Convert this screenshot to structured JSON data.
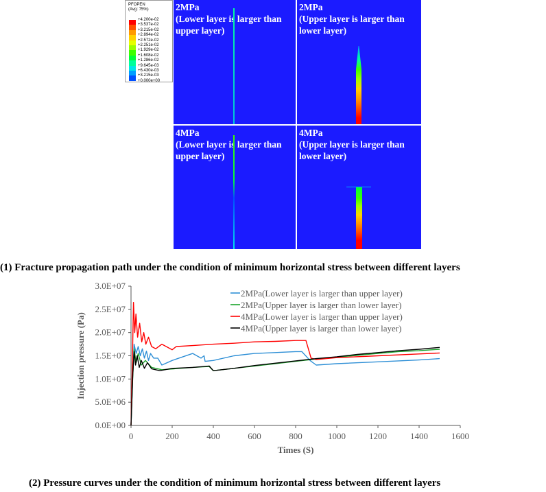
{
  "contour": {
    "legend_title": "PFOPEN\n(Avg: 75%)",
    "legend_values": [
      "+4.200e-02",
      "+3.537e-02",
      "+3.215e-02",
      "+2.894e-02",
      "+2.572e-02",
      "+2.251e-02",
      "+1.929e-02",
      "+1.608e-02",
      "+1.286e-02",
      "+9.645e-03",
      "+6.430e-03",
      "+3.215e-03",
      "+0.000e+00"
    ],
    "legend_colors": [
      "#ff0000",
      "#ff5000",
      "#ff9a00",
      "#ffd200",
      "#e6ff00",
      "#9bff00",
      "#3dff00",
      "#00ff3a",
      "#00ff9b",
      "#00e8e8",
      "#009eff",
      "#0050ff",
      "#0000ff"
    ],
    "panels": [
      {
        "label": "2MPa\n(Lower layer is larger than\nupper layer)"
      },
      {
        "label": "2MPa\n(Upper layer is larger than\nlower layer)"
      },
      {
        "label": "4MPa\n(Lower layer is larger than\nupper layer)"
      },
      {
        "label": "4MPa\n(Upper layer is larger than\nlower layer)"
      }
    ],
    "background_color": "#1b1bff"
  },
  "captions": {
    "top": "(1)    Fracture propagation path under the condition of minimum horizontal stress between different layers",
    "bottom": "(2)    Pressure curves under the condition of minimum horizontal stress between different layers"
  },
  "chart_data": {
    "type": "line",
    "xlabel": "Times (S)",
    "ylabel": "Injection pressure (Pa)",
    "xlim": [
      0,
      1600
    ],
    "ylim": [
      0,
      30000000
    ],
    "xticks": [
      "0",
      "200",
      "400",
      "600",
      "800",
      "1000",
      "1200",
      "1400",
      "1600"
    ],
    "yticks": [
      "0.0E+00",
      "5.0E+06",
      "1.0E+07",
      "1.5E+07",
      "2.0E+07",
      "2.5E+07",
      "3.0E+07"
    ],
    "legend_position": "top-right",
    "series": [
      {
        "name": "2MPa(Lower layer is larger than upper layer)",
        "color": "#2e8fd6",
        "points": [
          [
            0,
            0
          ],
          [
            8,
            10000000
          ],
          [
            15,
            17500000
          ],
          [
            25,
            15500000
          ],
          [
            35,
            17000000
          ],
          [
            45,
            15000000
          ],
          [
            55,
            16500000
          ],
          [
            65,
            14500000
          ],
          [
            75,
            16000000
          ],
          [
            85,
            14000000
          ],
          [
            95,
            15500000
          ],
          [
            110,
            14500000
          ],
          [
            130,
            14500000
          ],
          [
            150,
            13000000
          ],
          [
            200,
            14000000
          ],
          [
            300,
            15500000
          ],
          [
            340,
            14500000
          ],
          [
            355,
            15000000
          ],
          [
            360,
            13800000
          ],
          [
            400,
            14000000
          ],
          [
            500,
            15000000
          ],
          [
            600,
            15500000
          ],
          [
            700,
            15700000
          ],
          [
            800,
            15900000
          ],
          [
            830,
            15900000
          ],
          [
            870,
            14000000
          ],
          [
            900,
            13000000
          ],
          [
            1000,
            13300000
          ],
          [
            1200,
            13700000
          ],
          [
            1400,
            14100000
          ],
          [
            1500,
            14400000
          ]
        ]
      },
      {
        "name": "2MPa(Upper layer is larger than lower layer)",
        "color": "#1aa32a",
        "points": [
          [
            0,
            0
          ],
          [
            8,
            10000000
          ],
          [
            15,
            16500000
          ],
          [
            25,
            13500000
          ],
          [
            35,
            15500000
          ],
          [
            50,
            13000000
          ],
          [
            70,
            14000000
          ],
          [
            100,
            12500000
          ],
          [
            150,
            12000000
          ],
          [
            300,
            12500000
          ],
          [
            380,
            12700000
          ],
          [
            400,
            11800000
          ],
          [
            500,
            12300000
          ],
          [
            600,
            12800000
          ],
          [
            700,
            13300000
          ],
          [
            800,
            13800000
          ],
          [
            900,
            14300000
          ],
          [
            1000,
            14700000
          ],
          [
            1100,
            15100000
          ],
          [
            1200,
            15500000
          ],
          [
            1300,
            15900000
          ],
          [
            1400,
            16100000
          ],
          [
            1500,
            16400000
          ]
        ]
      },
      {
        "name": "4MPa(Lower layer is larger than upper layer)",
        "color": "#ff0000",
        "points": [
          [
            0,
            0
          ],
          [
            6,
            12000000
          ],
          [
            12,
            26500000
          ],
          [
            18,
            20000000
          ],
          [
            24,
            24000000
          ],
          [
            32,
            19000000
          ],
          [
            42,
            22000000
          ],
          [
            52,
            18000000
          ],
          [
            62,
            20000000
          ],
          [
            72,
            17500000
          ],
          [
            85,
            19000000
          ],
          [
            100,
            17000000
          ],
          [
            120,
            16500000
          ],
          [
            150,
            17500000
          ],
          [
            200,
            16300000
          ],
          [
            220,
            17000000
          ],
          [
            300,
            17200000
          ],
          [
            400,
            17500000
          ],
          [
            500,
            17700000
          ],
          [
            600,
            18000000
          ],
          [
            700,
            18100000
          ],
          [
            800,
            18300000
          ],
          [
            850,
            18300000
          ],
          [
            875,
            14500000
          ],
          [
            900,
            14200000
          ],
          [
            1000,
            14600000
          ],
          [
            1200,
            15000000
          ],
          [
            1400,
            15400000
          ],
          [
            1500,
            15600000
          ]
        ]
      },
      {
        "name": "4MPa(Upper layer is larger than lower layer)",
        "color": "#000000",
        "points": [
          [
            0,
            0
          ],
          [
            8,
            10500000
          ],
          [
            15,
            16000000
          ],
          [
            22,
            13000000
          ],
          [
            30,
            15000000
          ],
          [
            40,
            12500000
          ],
          [
            50,
            14000000
          ],
          [
            65,
            12300000
          ],
          [
            80,
            13500000
          ],
          [
            100,
            12200000
          ],
          [
            140,
            11800000
          ],
          [
            200,
            12300000
          ],
          [
            300,
            12500000
          ],
          [
            380,
            12800000
          ],
          [
            400,
            11800000
          ],
          [
            500,
            12300000
          ],
          [
            600,
            12900000
          ],
          [
            700,
            13400000
          ],
          [
            800,
            13900000
          ],
          [
            900,
            14400000
          ],
          [
            1000,
            14800000
          ],
          [
            1100,
            15300000
          ],
          [
            1200,
            15700000
          ],
          [
            1300,
            16100000
          ],
          [
            1400,
            16400000
          ],
          [
            1500,
            16800000
          ]
        ]
      }
    ]
  }
}
